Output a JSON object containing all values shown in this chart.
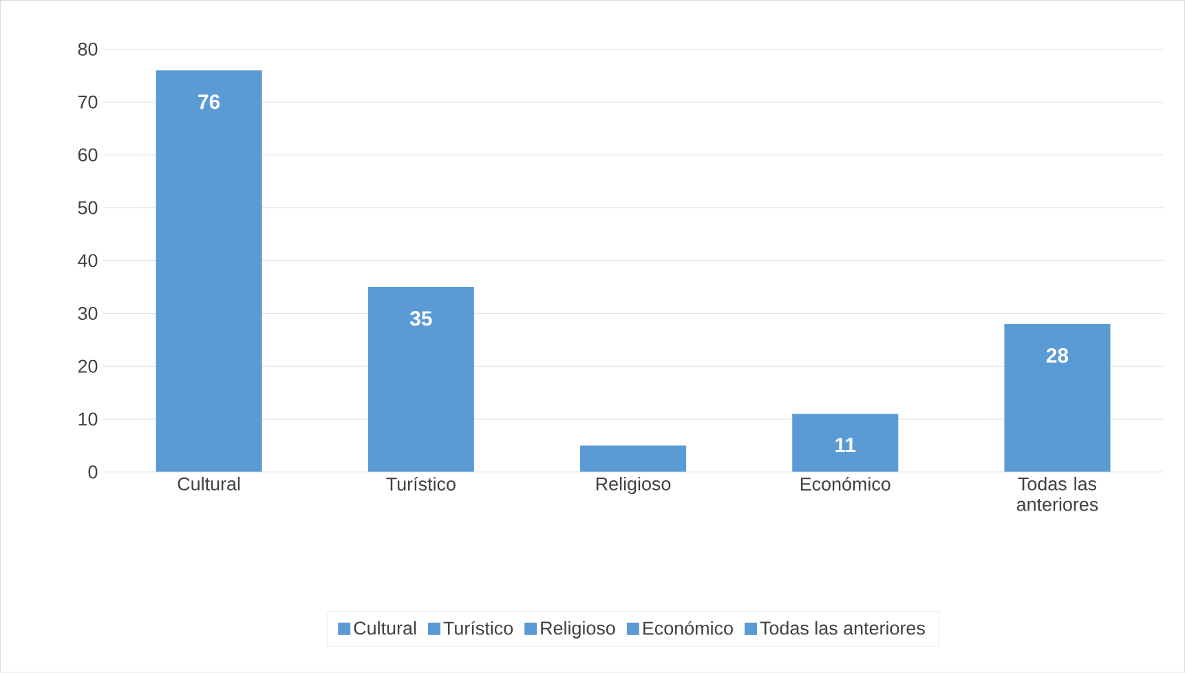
{
  "chart_data": {
    "type": "bar",
    "categories": [
      "Cultural",
      "Turístico",
      "Religioso",
      "Económico",
      "Todas las anteriores"
    ],
    "series": [
      {
        "name": "Cultural",
        "color": "#5b9bd5",
        "values": [
          76,
          null,
          null,
          null,
          null
        ],
        "value_labels": [
          "76",
          null,
          null,
          null,
          null
        ]
      },
      {
        "name": "Turístico",
        "color": "#5b9bd5",
        "values": [
          null,
          35,
          null,
          null,
          null
        ],
        "value_labels": [
          null,
          "35",
          null,
          null,
          null
        ]
      },
      {
        "name": "Religioso",
        "color": "#5b9bd5",
        "values": [
          null,
          null,
          5,
          null,
          null
        ],
        "value_labels": [
          null,
          null,
          null,
          null,
          null
        ]
      },
      {
        "name": "Económico",
        "color": "#5b9bd5",
        "values": [
          null,
          null,
          null,
          11,
          null
        ],
        "value_labels": [
          null,
          null,
          null,
          "11",
          null
        ]
      },
      {
        "name": "Todas las anteriores",
        "color": "#5b9bd5",
        "values": [
          null,
          null,
          null,
          null,
          28
        ],
        "value_labels": [
          null,
          null,
          null,
          null,
          "28"
        ]
      }
    ],
    "ylim": [
      0,
      80
    ],
    "yticks": [
      0,
      10,
      20,
      30,
      40,
      50,
      60,
      70,
      80
    ],
    "grid": "y",
    "legend": "bottom"
  }
}
